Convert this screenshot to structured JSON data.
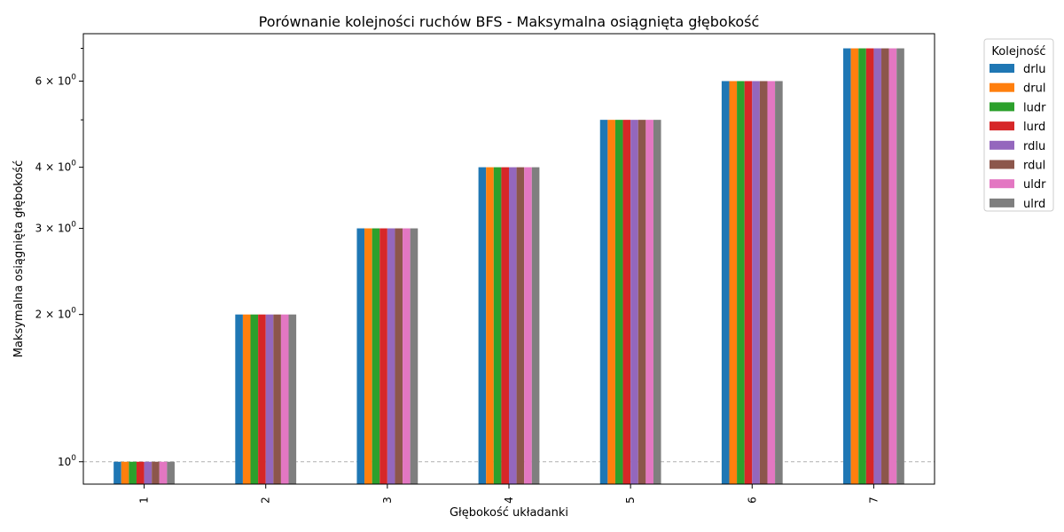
{
  "chart_data": {
    "type": "bar",
    "title": "Porównanie kolejności ruchów BFS - Maksymalna osiągnięta głębokość",
    "xlabel": "Głębokość układanki",
    "ylabel": "Maksymalna osiągnięta głębokość",
    "yscale": "log",
    "ylim": [
      0.9,
      7.5
    ],
    "categories": [
      "1",
      "2",
      "3",
      "4",
      "5",
      "6",
      "7"
    ],
    "yticks": [
      {
        "value": 1,
        "base": "10",
        "exp": "0"
      },
      {
        "value": 2,
        "base": "2 × 10",
        "exp": "0"
      },
      {
        "value": 3,
        "base": "3 × 10",
        "exp": "0"
      },
      {
        "value": 4,
        "base": "4 × 10",
        "exp": "0"
      },
      {
        "value": 6,
        "base": "6 × 10",
        "exp": "0"
      }
    ],
    "minor_ticks": [
      5,
      7
    ],
    "grid": "horizontal dashed at 10^0",
    "legend": {
      "title": "Kolejność",
      "placement": "outside top-right"
    },
    "series": [
      {
        "name": "drlu",
        "color": "#1f77b4",
        "values": [
          1,
          2,
          3,
          4,
          5,
          6,
          7
        ]
      },
      {
        "name": "drul",
        "color": "#ff7f0e",
        "values": [
          1,
          2,
          3,
          4,
          5,
          6,
          7
        ]
      },
      {
        "name": "ludr",
        "color": "#2ca02c",
        "values": [
          1,
          2,
          3,
          4,
          5,
          6,
          7
        ]
      },
      {
        "name": "lurd",
        "color": "#d62728",
        "values": [
          1,
          2,
          3,
          4,
          5,
          6,
          7
        ]
      },
      {
        "name": "rdlu",
        "color": "#9467bd",
        "values": [
          1,
          2,
          3,
          4,
          5,
          6,
          7
        ]
      },
      {
        "name": "rdul",
        "color": "#8c564b",
        "values": [
          1,
          2,
          3,
          4,
          5,
          6,
          7
        ]
      },
      {
        "name": "uldr",
        "color": "#e377c2",
        "values": [
          1,
          2,
          3,
          4,
          5,
          6,
          7
        ]
      },
      {
        "name": "ulrd",
        "color": "#7f7f7f",
        "values": [
          1,
          2,
          3,
          4,
          5,
          6,
          7
        ]
      }
    ]
  }
}
